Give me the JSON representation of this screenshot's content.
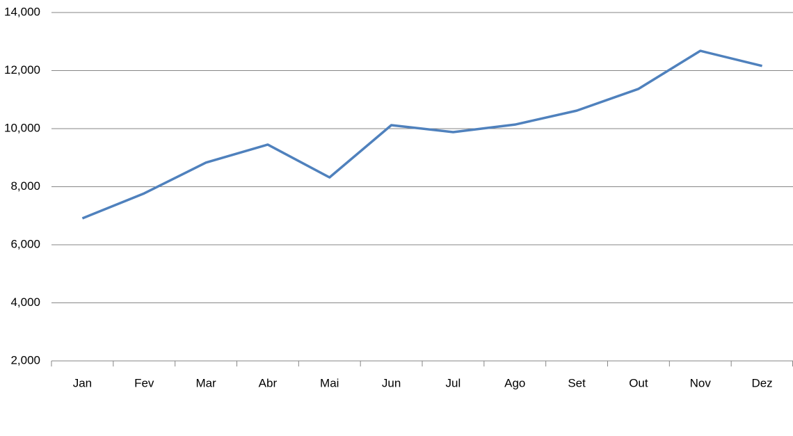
{
  "chart_data": {
    "type": "line",
    "categories": [
      "Jan",
      "Fev",
      "Mar",
      "Abr",
      "Mai",
      "Jun",
      "Jul",
      "Ago",
      "Set",
      "Out",
      "Nov",
      "Dez"
    ],
    "values": [
      6910,
      7770,
      8830,
      9450,
      8320,
      10120,
      9880,
      10140,
      10620,
      11370,
      12680,
      12160
    ],
    "color": "#4f81bd",
    "ylim": [
      2000,
      14000
    ],
    "yticks": [
      {
        "value": 2000,
        "label": "2,000"
      },
      {
        "value": 4000,
        "label": "4,000"
      },
      {
        "value": 6000,
        "label": "6,000"
      },
      {
        "value": 8000,
        "label": "8,000"
      },
      {
        "value": 10000,
        "label": "10,000"
      },
      {
        "value": 12000,
        "label": "12,000"
      },
      {
        "value": 14000,
        "label": "14,000"
      }
    ],
    "grid": true
  }
}
